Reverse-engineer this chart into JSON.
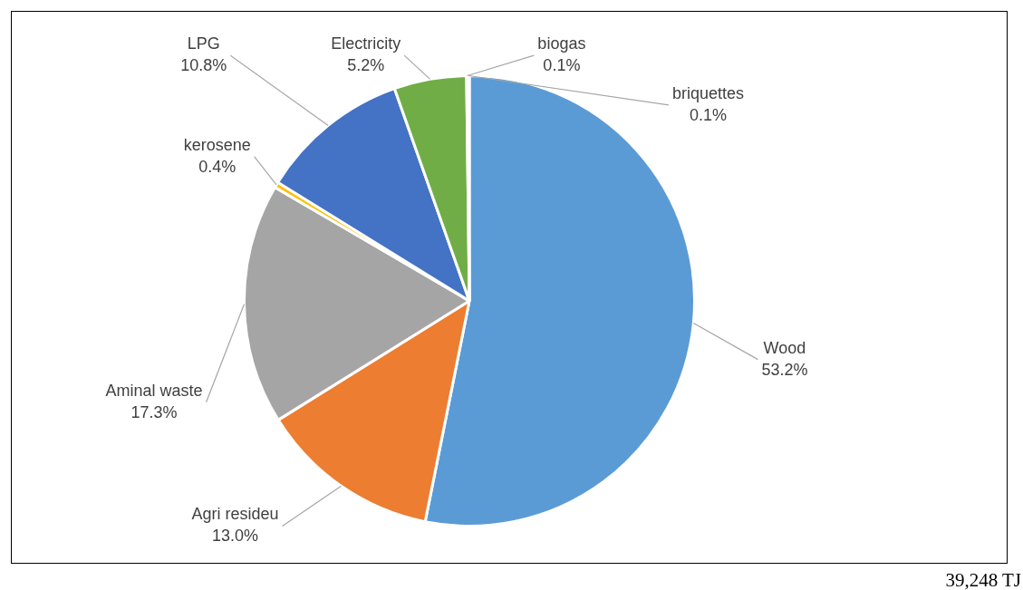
{
  "chart_data": {
    "type": "pie",
    "categories": [
      "Wood",
      "Agri resideu",
      "Aminal waste",
      "kerosene",
      "LPG",
      "Electricity",
      "biogas",
      "briquettes"
    ],
    "values": [
      53.2,
      13.0,
      17.3,
      0.4,
      10.8,
      5.2,
      0.1,
      0.1
    ],
    "colors": [
      "#5b9bd5",
      "#ed7d31",
      "#a5a5a5",
      "#ffc000",
      "#4472c4",
      "#70ad47",
      "#255e91",
      "#9e480e"
    ],
    "value_labels": [
      "53.2%",
      "13.0%",
      "17.3%",
      "0.4%",
      "10.8%",
      "5.2%",
      "0.1%",
      "0.1%"
    ],
    "legend": false,
    "annotations": [
      "39,248 TJ"
    ]
  }
}
